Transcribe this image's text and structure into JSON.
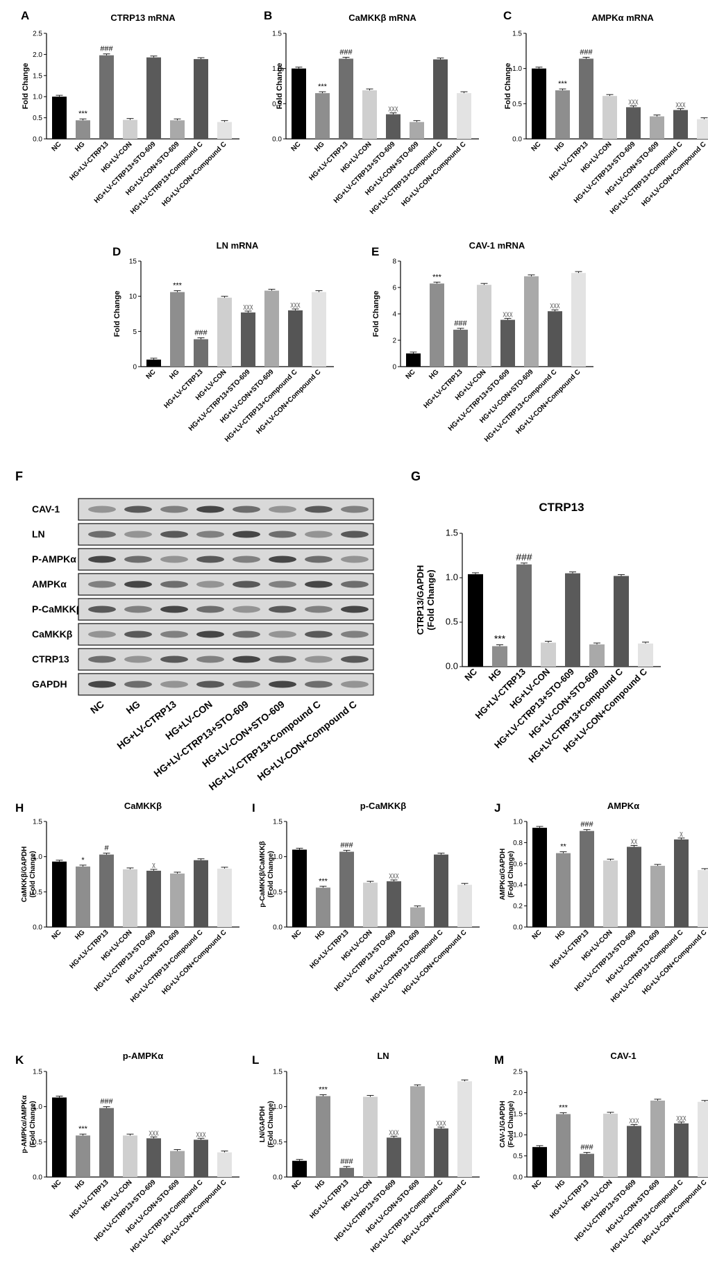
{
  "categories": [
    "NC",
    "HG",
    "HG+LV-CTRP13",
    "HG+LV-CON",
    "HG+LV-CTRP13+STO-609",
    "HG+LV-CON+STO-609",
    "HG+LV-CTRP13+Compound C",
    "HG+LV-CON+Compound C"
  ],
  "colors": [
    "#000000",
    "#8e8e8e",
    "#6f6f6f",
    "#cfcfcf",
    "#5a5a5a",
    "#a9a9a9",
    "#555555",
    "#e3e3e3"
  ],
  "western_blot": {
    "panel_label": "F",
    "bands": [
      "CAV-1",
      "LN",
      "P-AMPKα",
      "AMPKα",
      "P-CaMKKβ",
      "CaMKKβ",
      "CTRP13",
      "GAPDH"
    ],
    "lanes": [
      "NC",
      "HG",
      "HG+LV-CTRP13",
      "HG+LV-CON",
      "HG+LV-CTRP13+STO-609",
      "HG+LV-CON+STO-609",
      "HG+LV-CTRP13+Compound C",
      "HG+LV-CON+Compound C"
    ]
  },
  "chart_data": [
    {
      "panel_label": "A",
      "type": "bar",
      "title": "CTRP13 mRNA",
      "ylabel": "Fold Change",
      "ylim": [
        0,
        2.5
      ],
      "yticks": [
        "0.0",
        "0.5",
        "1.0",
        "1.5",
        "2.0",
        "2.5"
      ],
      "values": [
        1.0,
        0.44,
        1.98,
        0.45,
        1.93,
        0.44,
        1.89,
        0.4
      ],
      "annotations": [
        "",
        "***",
        "###",
        "",
        "",
        "",
        "",
        ""
      ]
    },
    {
      "panel_label": "B",
      "type": "bar",
      "title": "CaMKKβ mRNA",
      "ylabel": "Fold Change",
      "ylim": [
        0,
        1.5
      ],
      "yticks": [
        "0.0",
        "0.5",
        "1.0",
        "1.5"
      ],
      "values": [
        1.0,
        0.65,
        1.14,
        0.69,
        0.35,
        0.24,
        1.13,
        0.65
      ],
      "annotations": [
        "",
        "***",
        "###",
        "",
        "χχχ",
        "",
        "",
        ""
      ]
    },
    {
      "panel_label": "C",
      "type": "bar",
      "title": "AMPKα mRNA",
      "ylabel": "Fold Change",
      "ylim": [
        0,
        1.5
      ],
      "yticks": [
        "0.0",
        "0.5",
        "1.0",
        "1.5"
      ],
      "values": [
        1.0,
        0.69,
        1.14,
        0.61,
        0.45,
        0.32,
        0.41,
        0.28
      ],
      "annotations": [
        "",
        "***",
        "###",
        "",
        "χχχ",
        "",
        "χχχ",
        ""
      ]
    },
    {
      "panel_label": "D",
      "type": "bar",
      "title": "LN mRNA",
      "ylabel": "Fold Change",
      "ylim": [
        0,
        15
      ],
      "yticks": [
        "0",
        "5",
        "10",
        "15"
      ],
      "values": [
        1.0,
        10.6,
        3.9,
        9.8,
        7.7,
        10.8,
        8.0,
        10.6
      ],
      "annotations": [
        "",
        "***",
        "###",
        "",
        "χχχ",
        "",
        "χχχ",
        ""
      ]
    },
    {
      "panel_label": "E",
      "type": "bar",
      "title": "CAV-1 mRNA",
      "ylabel": "Fold Change",
      "ylim": [
        0,
        8
      ],
      "yticks": [
        "0",
        "2",
        "4",
        "6",
        "8"
      ],
      "values": [
        1.0,
        6.3,
        2.8,
        6.2,
        3.55,
        6.85,
        4.2,
        7.1
      ],
      "annotations": [
        "",
        "***",
        "###",
        "",
        "χχχ",
        "",
        "χχχ",
        ""
      ]
    },
    {
      "panel_label": "G",
      "type": "bar",
      "title": "CTRP13",
      "ylabel": "CTRP13/GAPDH\n(Fold Change)",
      "ylim": [
        0,
        1.5
      ],
      "yticks": [
        "0.0",
        "0.5",
        "1.0",
        "1.5"
      ],
      "values": [
        1.04,
        0.23,
        1.15,
        0.27,
        1.05,
        0.25,
        1.02,
        0.26
      ],
      "annotations": [
        "",
        "***",
        "###",
        "",
        "",
        "",
        "",
        ""
      ]
    },
    {
      "panel_label": "H",
      "type": "bar",
      "title": "CaMKKβ",
      "ylabel": "CaMKKβ/GAPDH\n(Fold Change)",
      "ylim": [
        0,
        1.5
      ],
      "yticks": [
        "0.0",
        "0.5",
        "1.0",
        "1.5"
      ],
      "values": [
        0.93,
        0.86,
        1.03,
        0.82,
        0.8,
        0.76,
        0.95,
        0.83
      ],
      "annotations": [
        "",
        "*",
        "#",
        "",
        "χ",
        "",
        "",
        ""
      ]
    },
    {
      "panel_label": "I",
      "type": "bar",
      "title": "p-CaMKKβ",
      "ylabel": "p-CaMKKβ/CaMKKβ\n(Fold Change)",
      "ylim": [
        0,
        1.5
      ],
      "yticks": [
        "0.0",
        "0.5",
        "1.0",
        "1.5"
      ],
      "values": [
        1.1,
        0.56,
        1.07,
        0.63,
        0.65,
        0.28,
        1.03,
        0.6
      ],
      "annotations": [
        "",
        "***",
        "###",
        "",
        "χχχ",
        "",
        "",
        ""
      ]
    },
    {
      "panel_label": "J",
      "type": "bar",
      "title": "AMPKα",
      "ylabel": "AMPKα/GAPDH\n(Fold Change)",
      "ylim": [
        0,
        1.0
      ],
      "yticks": [
        "0.0",
        "0.2",
        "0.4",
        "0.6",
        "0.8",
        "1.0"
      ],
      "values": [
        0.94,
        0.7,
        0.91,
        0.63,
        0.76,
        0.58,
        0.83,
        0.54
      ],
      "annotations": [
        "",
        "**",
        "###",
        "",
        "χχ",
        "",
        "χ",
        ""
      ]
    },
    {
      "panel_label": "K",
      "type": "bar",
      "title": "p-AMPKα",
      "ylabel": "p-AMPKα/AMPKα\n(Fold Change)",
      "ylim": [
        0,
        1.5
      ],
      "yticks": [
        "0.0",
        "0.5",
        "1.0",
        "1.5"
      ],
      "values": [
        1.13,
        0.59,
        0.98,
        0.59,
        0.55,
        0.37,
        0.53,
        0.35
      ],
      "annotations": [
        "",
        "***",
        "###",
        "",
        "χχχ",
        "",
        "χχχ",
        ""
      ]
    },
    {
      "panel_label": "L",
      "type": "bar",
      "title": "LN",
      "ylabel": "LN/GAPDH\n(Fold Change)",
      "ylim": [
        0,
        1.5
      ],
      "yticks": [
        "0.0",
        "0.5",
        "1.0",
        "1.5"
      ],
      "values": [
        0.23,
        1.15,
        0.13,
        1.14,
        0.56,
        1.29,
        0.69,
        1.36
      ],
      "annotations": [
        "",
        "***",
        "###",
        "",
        "χχχ",
        "",
        "χχχ",
        ""
      ]
    },
    {
      "panel_label": "M",
      "type": "bar",
      "title": "CAV-1",
      "ylabel": "CAV-1/GAPDH\n(Fold Change)",
      "ylim": [
        0,
        2.5
      ],
      "yticks": [
        "0.0",
        "0.5",
        "1.0",
        "1.5",
        "2.0",
        "2.5"
      ],
      "values": [
        0.71,
        1.49,
        0.55,
        1.5,
        1.21,
        1.81,
        1.27,
        1.78
      ],
      "annotations": [
        "",
        "***",
        "###",
        "",
        "χχχ",
        "",
        "χχχ",
        ""
      ]
    }
  ]
}
